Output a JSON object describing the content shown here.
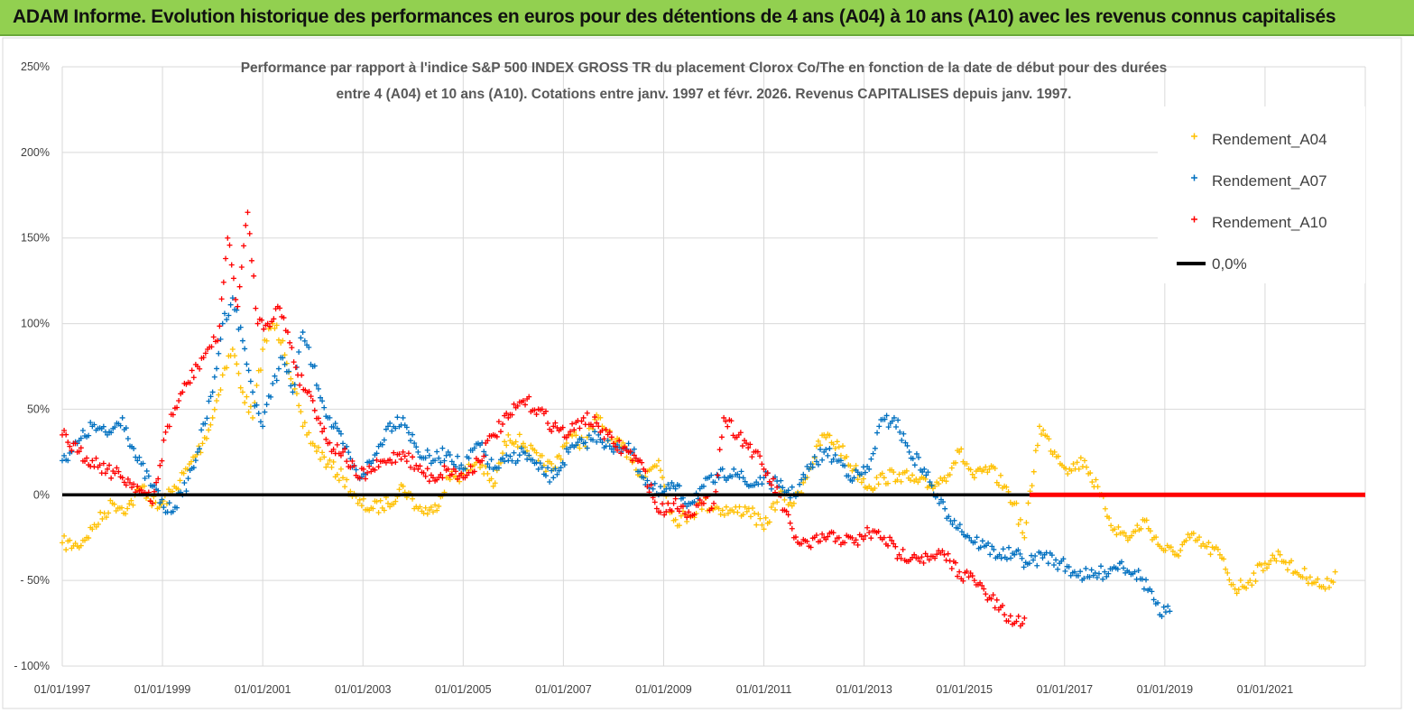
{
  "banner": {
    "title": "ADAM Informe. Evolution historique des performances en euros pour des détentions de 4 ans (A04) à 10 ans (A10) avec les revenus connus capitalisés"
  },
  "chart_data": {
    "type": "scatter",
    "title_line1": "Performance par rapport à l'indice S&P 500 INDEX GROSS TR  du placement Clorox Co/The en fonction de la date de début pour des durées",
    "title_line2": "entre 4 (A04) et 10 ans (A10).  Cotations entre janv. 1997 et févr. 2026. Revenus  CAPITALISES depuis janv. 1997.",
    "xlabel": "",
    "ylabel": "",
    "x_range": [
      1997.0,
      2023.0
    ],
    "ylim": [
      -100,
      250
    ],
    "y_ticks": [
      250,
      200,
      150,
      100,
      50,
      0,
      -50,
      -100
    ],
    "y_tick_labels": [
      "250%",
      "200%",
      "150%",
      "100%",
      "50%",
      "0%",
      "- 50%",
      "- 100%"
    ],
    "x_ticks": [
      1997,
      1999,
      2001,
      2003,
      2005,
      2007,
      2009,
      2011,
      2013,
      2015,
      2017,
      2019,
      2021
    ],
    "x_tick_labels": [
      "01/01/1997",
      "01/01/1999",
      "01/01/2001",
      "01/01/2003",
      "01/01/2005",
      "01/01/2007",
      "01/01/2009",
      "01/01/2011",
      "01/01/2013",
      "01/01/2015",
      "01/01/2017",
      "01/01/2019",
      "01/01/2021"
    ],
    "grid": true,
    "legend_position": "top-right",
    "series": [
      {
        "name": "Rendement_A04",
        "color": "#ffc000",
        "marker": "plus",
        "x": [
          1997.0,
          1997.3,
          1997.6,
          1998.0,
          1998.3,
          1998.6,
          1998.9,
          1999.2,
          1999.5,
          1999.8,
          2000.0,
          2000.2,
          2000.4,
          2000.6,
          2000.8,
          2001.0,
          2001.2,
          2001.4,
          2001.6,
          2001.8,
          2002.0,
          2002.3,
          2002.6,
          2002.9,
          2003.2,
          2003.5,
          2003.8,
          2004.1,
          2004.4,
          2004.7,
          2005.0,
          2005.3,
          2005.6,
          2005.9,
          2006.2,
          2006.5,
          2006.8,
          2007.1,
          2007.4,
          2007.7,
          2008.0,
          2008.3,
          2008.6,
          2008.9,
          2009.2,
          2009.5,
          2009.8,
          2010.1,
          2010.4,
          2010.7,
          2011.0,
          2011.3,
          2011.6,
          2011.9,
          2012.2,
          2012.5,
          2012.8,
          2013.1,
          2013.4,
          2013.7,
          2014.0,
          2014.3,
          2014.6,
          2014.9,
          2015.2,
          2015.5,
          2015.8,
          2016.0,
          2016.2,
          2016.5,
          2016.8,
          2017.1,
          2017.4,
          2017.7,
          2018.0,
          2018.3,
          2018.6,
          2018.9,
          2019.2,
          2019.5,
          2019.8,
          2020.1,
          2020.4,
          2020.7,
          2021.0,
          2021.3,
          2021.6,
          2021.9,
          2022.2,
          2022.4
        ],
        "y": [
          -28,
          -30,
          -20,
          -5,
          -8,
          5,
          -8,
          2,
          15,
          30,
          45,
          70,
          85,
          60,
          45,
          85,
          100,
          90,
          65,
          40,
          30,
          18,
          10,
          -5,
          -8,
          -5,
          5,
          -8,
          -10,
          10,
          12,
          20,
          5,
          35,
          30,
          20,
          15,
          35,
          30,
          45,
          30,
          25,
          10,
          20,
          -15,
          -12,
          -5,
          -8,
          -10,
          -8,
          -20,
          0,
          -5,
          15,
          35,
          28,
          15,
          5,
          10,
          12,
          8,
          5,
          10,
          25,
          10,
          15,
          5,
          -5,
          -25,
          40,
          25,
          15,
          20,
          0,
          -20,
          -25,
          -15,
          -30,
          -35,
          -25,
          -30,
          -35,
          -55,
          -50,
          -40,
          -35,
          -45,
          -48,
          -55,
          -45
        ]
      },
      {
        "name": "Rendement_A07",
        "color": "#0070c0",
        "marker": "plus",
        "x": [
          1997.0,
          1997.3,
          1997.6,
          1997.9,
          1998.2,
          1998.5,
          1998.8,
          1999.1,
          1999.4,
          1999.7,
          2000.0,
          2000.2,
          2000.4,
          2000.6,
          2000.8,
          2001.0,
          2001.2,
          2001.4,
          2001.6,
          2001.8,
          2002.0,
          2002.3,
          2002.6,
          2002.9,
          2003.2,
          2003.5,
          2003.8,
          2004.1,
          2004.4,
          2004.7,
          2005.0,
          2005.3,
          2005.6,
          2005.9,
          2006.2,
          2006.5,
          2006.8,
          2007.1,
          2007.4,
          2007.7,
          2008.0,
          2008.3,
          2008.6,
          2008.9,
          2009.2,
          2009.5,
          2009.8,
          2010.1,
          2010.4,
          2010.7,
          2011.0,
          2011.3,
          2011.6,
          2011.9,
          2012.2,
          2012.5,
          2012.8,
          2013.1,
          2013.3,
          2013.6,
          2013.9,
          2014.2,
          2014.5,
          2014.8,
          2015.1,
          2015.4,
          2015.7,
          2016.0,
          2016.3,
          2016.6,
          2016.9,
          2017.2,
          2017.5,
          2017.8,
          2018.1,
          2018.4,
          2018.7,
          2018.9,
          2019.1
        ],
        "y": [
          20,
          30,
          40,
          35,
          45,
          20,
          5,
          -10,
          0,
          25,
          60,
          100,
          115,
          90,
          60,
          40,
          65,
          80,
          60,
          95,
          75,
          45,
          30,
          10,
          20,
          40,
          45,
          25,
          20,
          25,
          15,
          30,
          15,
          20,
          25,
          15,
          10,
          25,
          30,
          35,
          25,
          30,
          10,
          0,
          5,
          -5,
          5,
          10,
          15,
          5,
          10,
          5,
          0,
          15,
          25,
          20,
          10,
          15,
          40,
          45,
          25,
          15,
          -5,
          -15,
          -25,
          -30,
          -35,
          -35,
          -40,
          -35,
          -40,
          -45,
          -48,
          -45,
          -40,
          -45,
          -55,
          -70,
          -68
        ]
      },
      {
        "name": "Rendement_A10",
        "color": "#ff0000",
        "marker": "plus",
        "x": [
          1997.0,
          1997.3,
          1997.6,
          1997.9,
          1998.2,
          1998.5,
          1998.8,
          1999.1,
          1999.4,
          1999.7,
          1999.9,
          2000.1,
          2000.3,
          2000.5,
          2000.7,
          2000.9,
          2001.1,
          2001.3,
          2001.5,
          2001.7,
          2002.0,
          2002.3,
          2002.6,
          2002.9,
          2003.2,
          2003.5,
          2003.8,
          2004.1,
          2004.4,
          2004.7,
          2005.0,
          2005.3,
          2005.6,
          2005.9,
          2006.2,
          2006.5,
          2006.8,
          2007.1,
          2007.4,
          2007.7,
          2008.0,
          2008.3,
          2008.6,
          2008.9,
          2009.2,
          2009.5,
          2009.8,
          2010.0,
          2010.2,
          2010.5,
          2010.8,
          2011.0,
          2011.3,
          2011.6,
          2011.9,
          2012.2,
          2012.5,
          2012.8,
          2013.1,
          2013.4,
          2013.7,
          2014.0,
          2014.3,
          2014.6,
          2014.9,
          2015.2,
          2015.5,
          2015.8,
          2016.0,
          2016.2
        ],
        "y": [
          35,
          25,
          20,
          15,
          10,
          5,
          -5,
          40,
          60,
          75,
          85,
          90,
          150,
          110,
          165,
          100,
          100,
          110,
          95,
          70,
          55,
          30,
          25,
          10,
          15,
          20,
          25,
          15,
          10,
          15,
          10,
          20,
          35,
          45,
          55,
          50,
          40,
          35,
          45,
          40,
          30,
          25,
          15,
          -10,
          -5,
          -10,
          -5,
          -5,
          45,
          35,
          25,
          15,
          0,
          -25,
          -30,
          -25,
          -25,
          -28,
          -22,
          -25,
          -35,
          -35,
          -38,
          -35,
          -45,
          -50,
          -60,
          -70,
          -75,
          -72
        ]
      },
      {
        "name": "Rendement_A10 (zero tail)",
        "color": "#ff0000",
        "marker": "dot",
        "x": [
          2016.3,
          2023.0
        ],
        "y": [
          0,
          0
        ]
      },
      {
        "name": "0,0%",
        "color": "#000000",
        "marker": "line",
        "x": [
          1997.0,
          2016.3
        ],
        "y": [
          0,
          0
        ]
      }
    ]
  },
  "legend": [
    {
      "label": "Rendement_A04",
      "color": "#ffc000"
    },
    {
      "label": "Rendement_A07",
      "color": "#0070c0"
    },
    {
      "label": "Rendement_A10",
      "color": "#ff0000"
    },
    {
      "label": "0,0%",
      "color": "#000000"
    }
  ]
}
